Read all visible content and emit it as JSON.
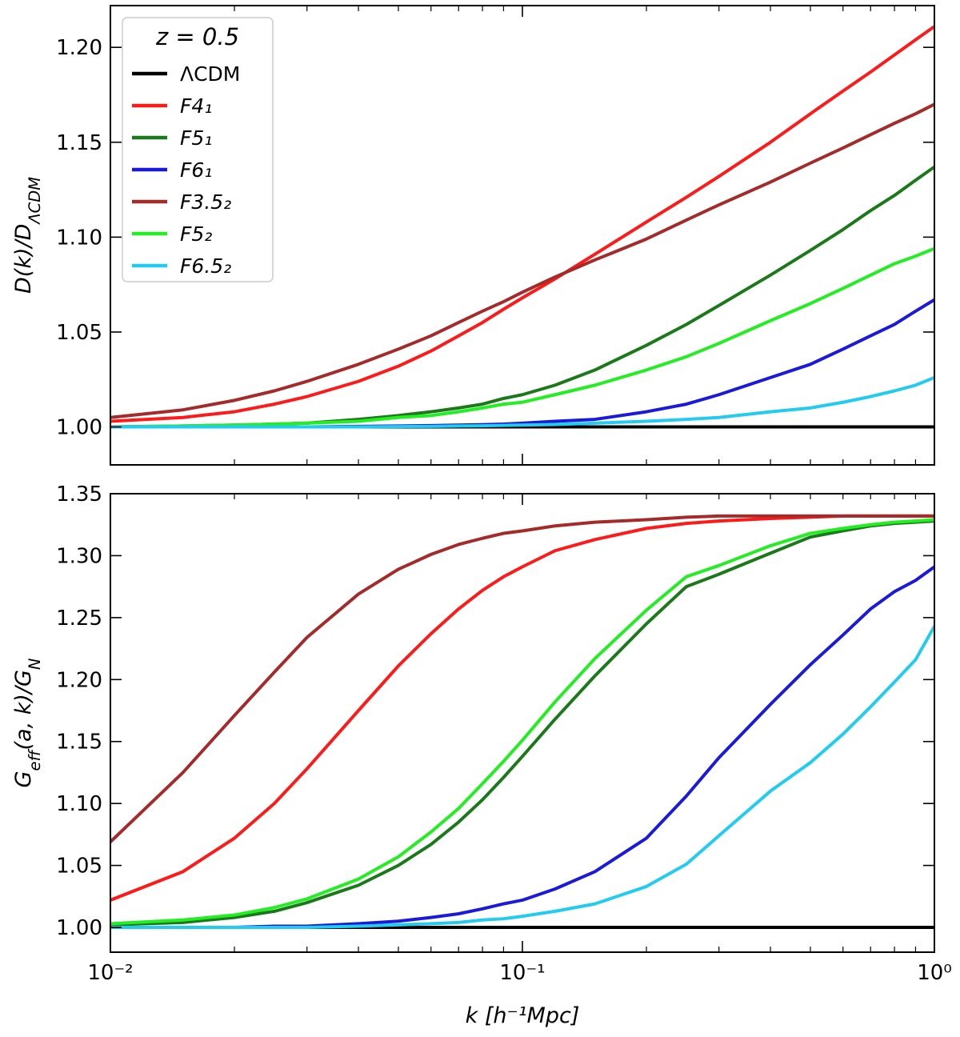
{
  "chart_data": [
    {
      "type": "line",
      "panel": "top",
      "xscale": "log",
      "xlim": [
        0.01,
        1
      ],
      "ylim": [
        0.98,
        1.222
      ],
      "yticks": [
        "1.00",
        "1.05",
        "1.10",
        "1.15",
        "1.20"
      ],
      "ylabel": "D(k)/D_ΛCDM",
      "legend": {
        "title": "z = 0.5",
        "position": "upper-left"
      },
      "x": [
        0.01,
        0.015,
        0.02,
        0.025,
        0.03,
        0.04,
        0.05,
        0.06,
        0.07,
        0.08,
        0.09,
        0.1,
        0.12,
        0.15,
        0.2,
        0.25,
        0.3,
        0.4,
        0.5,
        0.6,
        0.7,
        0.8,
        0.9,
        1.0
      ],
      "series": [
        {
          "name": "ΛCDM",
          "color": "#000000",
          "values": [
            1,
            1,
            1,
            1,
            1,
            1,
            1,
            1,
            1,
            1,
            1,
            1,
            1,
            1,
            1,
            1,
            1,
            1,
            1,
            1,
            1,
            1,
            1,
            1
          ]
        },
        {
          "name": "F4₁",
          "color": "#ff1a1a",
          "values": [
            1.003,
            1.005,
            1.008,
            1.012,
            1.016,
            1.024,
            1.032,
            1.04,
            1.048,
            1.055,
            1.062,
            1.068,
            1.078,
            1.091,
            1.108,
            1.121,
            1.132,
            1.15,
            1.165,
            1.177,
            1.187,
            1.196,
            1.204,
            1.211
          ]
        },
        {
          "name": "F5₁",
          "color": "#1a7a1a",
          "values": [
            1.0,
            1.0005,
            1.001,
            1.0015,
            1.002,
            1.004,
            1.006,
            1.008,
            1.01,
            1.012,
            1.015,
            1.017,
            1.022,
            1.03,
            1.043,
            1.054,
            1.064,
            1.08,
            1.093,
            1.104,
            1.114,
            1.122,
            1.13,
            1.137
          ]
        },
        {
          "name": "F6₁",
          "color": "#1a1add",
          "values": [
            1.0,
            1.0,
            1.0,
            1.0,
            1.0,
            1.0003,
            1.0005,
            1.0007,
            1.001,
            1.0012,
            1.0015,
            1.002,
            1.003,
            1.004,
            1.008,
            1.012,
            1.017,
            1.026,
            1.033,
            1.041,
            1.048,
            1.054,
            1.061,
            1.067
          ]
        },
        {
          "name": "F3.5₂",
          "color": "#a52a2a",
          "values": [
            1.005,
            1.009,
            1.014,
            1.019,
            1.024,
            1.033,
            1.041,
            1.048,
            1.055,
            1.061,
            1.066,
            1.071,
            1.079,
            1.088,
            1.099,
            1.109,
            1.117,
            1.129,
            1.139,
            1.147,
            1.154,
            1.16,
            1.165,
            1.17
          ]
        },
        {
          "name": "F5₂",
          "color": "#22ee22",
          "values": [
            1.0,
            1.0005,
            1.001,
            1.0015,
            1.002,
            1.003,
            1.005,
            1.006,
            1.008,
            1.01,
            1.012,
            1.013,
            1.017,
            1.022,
            1.03,
            1.037,
            1.044,
            1.056,
            1.065,
            1.073,
            1.08,
            1.086,
            1.09,
            1.094
          ]
        },
        {
          "name": "F6.5₂",
          "color": "#22ccf0",
          "values": [
            1.0,
            1.0,
            1.0,
            1.0,
            1.0,
            1.0,
            1.0002,
            1.0003,
            1.0005,
            1.0006,
            1.0008,
            1.001,
            1.0013,
            1.002,
            1.003,
            1.004,
            1.005,
            1.008,
            1.01,
            1.013,
            1.016,
            1.019,
            1.022,
            1.026
          ]
        }
      ]
    },
    {
      "type": "line",
      "panel": "bottom",
      "xscale": "log",
      "xlim": [
        0.01,
        1
      ],
      "ylim": [
        0.98,
        1.35
      ],
      "yticks": [
        "1.00",
        "1.05",
        "1.10",
        "1.15",
        "1.20",
        "1.25",
        "1.30",
        "1.35"
      ],
      "xticks": [
        "10⁻²",
        "10⁻¹",
        "10⁰"
      ],
      "ylabel": "G_eff(a, k)/G_N",
      "xlabel": "k [h⁻¹Mpc]",
      "x": [
        0.01,
        0.015,
        0.02,
        0.025,
        0.03,
        0.04,
        0.05,
        0.06,
        0.07,
        0.08,
        0.09,
        0.1,
        0.12,
        0.15,
        0.2,
        0.25,
        0.3,
        0.4,
        0.5,
        0.6,
        0.7,
        0.8,
        0.9,
        1.0
      ],
      "series": [
        {
          "name": "ΛCDM",
          "color": "#000000",
          "values": [
            1,
            1,
            1,
            1,
            1,
            1,
            1,
            1,
            1,
            1,
            1,
            1,
            1,
            1,
            1,
            1,
            1,
            1,
            1,
            1,
            1,
            1,
            1,
            1
          ]
        },
        {
          "name": "F4₁",
          "color": "#ff1a1a",
          "values": [
            1.022,
            1.045,
            1.072,
            1.1,
            1.128,
            1.175,
            1.211,
            1.237,
            1.257,
            1.272,
            1.283,
            1.291,
            1.304,
            1.313,
            1.322,
            1.326,
            1.328,
            1.33,
            1.331,
            1.332,
            1.332,
            1.332,
            1.332,
            1.332
          ]
        },
        {
          "name": "F5₁",
          "color": "#1a7a1a",
          "values": [
            1.002,
            1.004,
            1.008,
            1.013,
            1.02,
            1.034,
            1.05,
            1.067,
            1.085,
            1.103,
            1.121,
            1.138,
            1.168,
            1.203,
            1.245,
            1.275,
            1.285,
            1.302,
            1.315,
            1.32,
            1.324,
            1.326,
            1.327,
            1.328
          ]
        },
        {
          "name": "F6₁",
          "color": "#1a1add",
          "values": [
            1.0,
            1.0,
            1.0,
            1.001,
            1.001,
            1.003,
            1.005,
            1.008,
            1.011,
            1.015,
            1.019,
            1.022,
            1.031,
            1.045,
            1.072,
            1.106,
            1.137,
            1.18,
            1.212,
            1.236,
            1.257,
            1.271,
            1.28,
            1.291
          ]
        },
        {
          "name": "F3.5₂",
          "color": "#a52a2a",
          "values": [
            1.069,
            1.125,
            1.171,
            1.206,
            1.234,
            1.269,
            1.289,
            1.301,
            1.309,
            1.314,
            1.318,
            1.32,
            1.324,
            1.327,
            1.329,
            1.331,
            1.332,
            1.332,
            1.332,
            1.332,
            1.332,
            1.332,
            1.332,
            1.332
          ]
        },
        {
          "name": "F5₂",
          "color": "#22ee22",
          "values": [
            1.003,
            1.006,
            1.01,
            1.016,
            1.023,
            1.039,
            1.057,
            1.077,
            1.096,
            1.116,
            1.134,
            1.151,
            1.182,
            1.217,
            1.256,
            1.283,
            1.292,
            1.308,
            1.318,
            1.322,
            1.325,
            1.327,
            1.328,
            1.329
          ]
        },
        {
          "name": "F6.5₂",
          "color": "#22ccf0",
          "values": [
            1.0,
            1.0,
            1.0,
            1.0,
            1.0,
            1.001,
            1.002,
            1.003,
            1.004,
            1.006,
            1.007,
            1.009,
            1.013,
            1.019,
            1.033,
            1.051,
            1.074,
            1.11,
            1.133,
            1.156,
            1.178,
            1.198,
            1.216,
            1.243
          ]
        }
      ]
    }
  ]
}
